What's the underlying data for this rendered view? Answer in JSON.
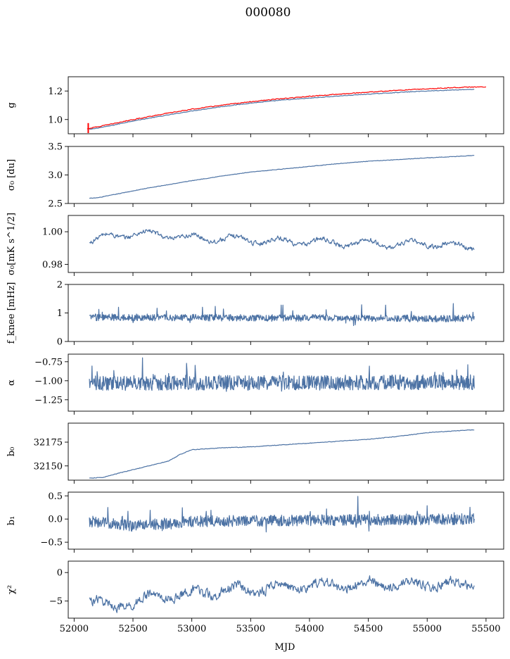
{
  "figure": {
    "title": "000080",
    "xlabel": "MJD",
    "line_color": "#4c72a4",
    "fit_color": "#ff0000"
  },
  "chart_data": [
    {
      "type": "line",
      "ylabel": "g",
      "xlim": [
        51950,
        55650
      ],
      "ylim": [
        0.9,
        1.3
      ],
      "yticks": [
        1.0,
        1.2
      ],
      "ytick_labels": [
        "1.0",
        "1.2"
      ],
      "show_xticklabels": false,
      "series": [
        {
          "shape": "smooth",
          "x": [
            52130,
            52300,
            52500,
            52750,
            53000,
            53250,
            53500,
            53750,
            54000,
            54250,
            54500,
            54750,
            55000,
            55250,
            55400
          ],
          "values": [
            0.93,
            0.955,
            0.99,
            1.025,
            1.06,
            1.09,
            1.115,
            1.135,
            1.15,
            1.165,
            1.178,
            1.19,
            1.2,
            1.208,
            1.212
          ],
          "noise": 0.002,
          "color": "#4c72a4"
        },
        {
          "shape": "smooth",
          "x": [
            52110,
            52300,
            52500,
            52750,
            53000,
            53250,
            53500,
            53750,
            54000,
            54250,
            54500,
            54750,
            55000,
            55250,
            55500
          ],
          "values": [
            0.935,
            0.965,
            1.0,
            1.038,
            1.072,
            1.1,
            1.125,
            1.145,
            1.162,
            1.178,
            1.192,
            1.205,
            1.215,
            1.225,
            1.23
          ],
          "noise": 0.003,
          "color": "#ff0000",
          "width": 2.2,
          "errorbar": {
            "x": 52120,
            "y": 0.94,
            "err": 0.035
          }
        }
      ]
    },
    {
      "type": "line",
      "ylabel": "σ₀ [du]",
      "xlim": [
        51950,
        55650
      ],
      "ylim": [
        2.5,
        3.5
      ],
      "yticks": [
        2.5,
        3.0,
        3.5
      ],
      "ytick_labels": [
        "2.5",
        "3.0",
        "3.5"
      ],
      "show_xticklabels": false,
      "series": [
        {
          "shape": "smooth",
          "x": [
            52130,
            52200,
            52400,
            52600,
            52800,
            53000,
            53250,
            53500,
            53750,
            54000,
            54250,
            54500,
            54750,
            55000,
            55250,
            55400
          ],
          "values": [
            2.59,
            2.6,
            2.68,
            2.76,
            2.83,
            2.9,
            2.98,
            3.05,
            3.1,
            3.15,
            3.2,
            3.24,
            3.27,
            3.3,
            3.325,
            3.34
          ],
          "noise": 0.004,
          "color": "#4c72a4"
        }
      ]
    },
    {
      "type": "line",
      "ylabel": "σ₀[mK s^1/2]",
      "xlim": [
        51950,
        55650
      ],
      "ylim": [
        0.975,
        1.01
      ],
      "yticks": [
        0.98,
        1.0
      ],
      "ytick_labels": [
        "0.98",
        "1.00"
      ],
      "show_xticklabels": false,
      "series": [
        {
          "shape": "oscillate",
          "x": [
            52130,
            52300,
            52500,
            52750,
            53000,
            53250,
            53500,
            53750,
            54000,
            54250,
            54500,
            54750,
            55000,
            55250,
            55400
          ],
          "values": [
            0.994,
            0.997,
            0.999,
            0.998,
            0.996,
            0.996,
            0.995,
            0.994,
            0.994,
            0.993,
            0.993,
            0.992,
            0.993,
            0.991,
            0.991
          ],
          "amplitude": 0.002,
          "period": 370,
          "noise": 0.0012,
          "color": "#4c72a4"
        }
      ]
    },
    {
      "type": "line",
      "ylabel": "f_knee [mHz]",
      "xlim": [
        51950,
        55650
      ],
      "ylim": [
        0,
        2
      ],
      "yticks": [
        0,
        1,
        2
      ],
      "ytick_labels": [
        "0",
        "1",
        "2"
      ],
      "show_xticklabels": false,
      "series": [
        {
          "shape": "noise",
          "x": [
            52130,
            55400
          ],
          "values": [
            0.85,
            0.8
          ],
          "noise": 0.12,
          "spikes": 0.35,
          "color": "#4c72a4"
        }
      ]
    },
    {
      "type": "line",
      "ylabel": "α",
      "xlim": [
        51950,
        55650
      ],
      "ylim": [
        -1.4,
        -0.65
      ],
      "yticks": [
        -1.25,
        -1.0,
        -0.75
      ],
      "ytick_labels": [
        "−1.25",
        "−1.00",
        "−0.75"
      ],
      "show_xticklabels": false,
      "series": [
        {
          "shape": "noise",
          "x": [
            52130,
            55400
          ],
          "values": [
            -1.03,
            -1.02
          ],
          "noise": 0.1,
          "spikes": 0.18,
          "color": "#4c72a4"
        }
      ]
    },
    {
      "type": "line",
      "ylabel": "b₀",
      "xlim": [
        51950,
        55650
      ],
      "ylim": [
        32135,
        32195
      ],
      "yticks": [
        32150,
        32175
      ],
      "ytick_labels": [
        "32150",
        "32175"
      ],
      "show_xticklabels": false,
      "series": [
        {
          "shape": "smooth",
          "x": [
            52130,
            52250,
            52400,
            52600,
            52800,
            52900,
            53000,
            53250,
            53500,
            53750,
            54000,
            54250,
            54500,
            54750,
            55000,
            55250,
            55400
          ],
          "values": [
            32137,
            32138,
            32143,
            32149,
            32155,
            32162,
            32167,
            32169,
            32170,
            32172,
            32174,
            32176,
            32178,
            32181,
            32185,
            32187,
            32188
          ],
          "noise": 0.3,
          "color": "#4c72a4"
        }
      ]
    },
    {
      "type": "line",
      "ylabel": "b₁",
      "xlim": [
        51950,
        55650
      ],
      "ylim": [
        -0.65,
        0.58
      ],
      "yticks": [
        -0.5,
        0.0,
        0.5
      ],
      "ytick_labels": [
        "−0.5",
        "0.0",
        "0.5"
      ],
      "show_xticklabels": false,
      "series": [
        {
          "shape": "noise",
          "x": [
            52130,
            52500,
            53000,
            55400
          ],
          "values": [
            -0.05,
            -0.15,
            -0.05,
            0.0
          ],
          "noise": 0.12,
          "spikes": 0.3,
          "color": "#4c72a4"
        }
      ]
    },
    {
      "type": "line",
      "ylabel": "χ²",
      "xlim": [
        51950,
        55650
      ],
      "ylim": [
        -8,
        2
      ],
      "yticks": [
        -5,
        0
      ],
      "ytick_labels": [
        "−5",
        "0"
      ],
      "show_xticklabels": true,
      "xticks": [
        52000,
        52500,
        53000,
        53500,
        54000,
        54500,
        55000,
        55500
      ],
      "xtick_labels": [
        "52000",
        "52500",
        "53000",
        "53500",
        "54000",
        "54500",
        "55000",
        "55500"
      ],
      "series": [
        {
          "shape": "oscillate",
          "x": [
            52130,
            52300,
            52500,
            52750,
            53000,
            53250,
            53500,
            53750,
            54000,
            54250,
            54500,
            54750,
            55000,
            55250,
            55400
          ],
          "values": [
            -4.5,
            -6.2,
            -5.2,
            -4.0,
            -3.8,
            -3.2,
            -3.0,
            -2.5,
            -2.3,
            -2.2,
            -2.0,
            -2.0,
            -2.0,
            -2.0,
            -2.0
          ],
          "amplitude": 0.7,
          "period": 370,
          "noise": 0.7,
          "color": "#4c72a4"
        }
      ]
    }
  ]
}
